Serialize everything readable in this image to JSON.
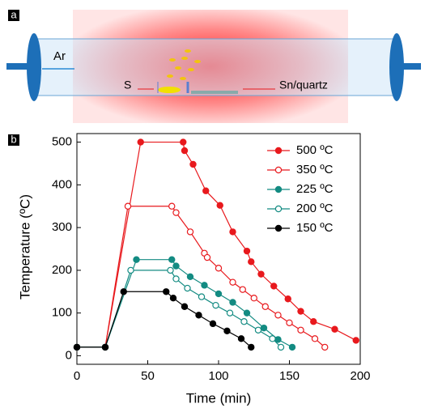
{
  "panel_a": {
    "label": "a",
    "gas": "Ar",
    "source": "S",
    "substrate": "Sn/quartz"
  },
  "chart_data": {
    "type": "line",
    "panel_label": "b",
    "x_label": "Time (min)",
    "y_label": "Temperature (ºC)",
    "xlim": [
      0,
      200
    ],
    "ylim": [
      -20,
      520
    ],
    "xticks": [
      0,
      50,
      100,
      150,
      200
    ],
    "yticks": [
      0,
      100,
      200,
      300,
      400,
      500
    ],
    "legend": "upper right",
    "series": [
      {
        "name": "500 ºC",
        "color": "#e8191d",
        "filled": true,
        "x": [
          0,
          20,
          45,
          75,
          76,
          82,
          91,
          101,
          110,
          120,
          123,
          130,
          139,
          149,
          158,
          167,
          182,
          197
        ],
        "values": [
          20,
          20,
          500,
          500,
          480,
          448,
          386,
          352,
          290,
          245,
          220,
          191,
          163,
          133,
          104,
          80,
          62,
          36
        ]
      },
      {
        "name": "350 ºC",
        "color": "#e8191d",
        "filled": false,
        "x": [
          0,
          20,
          36,
          67,
          70,
          80,
          90,
          92,
          100,
          110,
          117,
          125,
          133,
          142,
          150,
          158,
          168,
          175
        ],
        "values": [
          20,
          20,
          350,
          350,
          335,
          290,
          240,
          230,
          205,
          172,
          155,
          135,
          115,
          95,
          77,
          60,
          40,
          20
        ]
      },
      {
        "name": "225 ºC",
        "color": "#138b82",
        "filled": true,
        "x": [
          0,
          20,
          42,
          67,
          70,
          80,
          90,
          100,
          110,
          120,
          132,
          142,
          152
        ],
        "values": [
          20,
          20,
          225,
          225,
          210,
          185,
          165,
          145,
          125,
          100,
          65,
          38,
          20
        ]
      },
      {
        "name": "200 ºC",
        "color": "#138b82",
        "filled": false,
        "x": [
          0,
          20,
          38,
          66,
          70,
          78,
          88,
          98,
          108,
          118,
          128,
          138,
          144
        ],
        "values": [
          20,
          20,
          200,
          200,
          180,
          158,
          138,
          118,
          100,
          80,
          60,
          40,
          20
        ]
      },
      {
        "name": "150 ºC",
        "color": "#000000",
        "filled": true,
        "x": [
          0,
          20,
          33,
          63,
          68,
          76,
          86,
          96,
          106,
          116,
          123
        ],
        "values": [
          20,
          20,
          150,
          150,
          135,
          115,
          95,
          75,
          58,
          40,
          20
        ]
      }
    ]
  }
}
